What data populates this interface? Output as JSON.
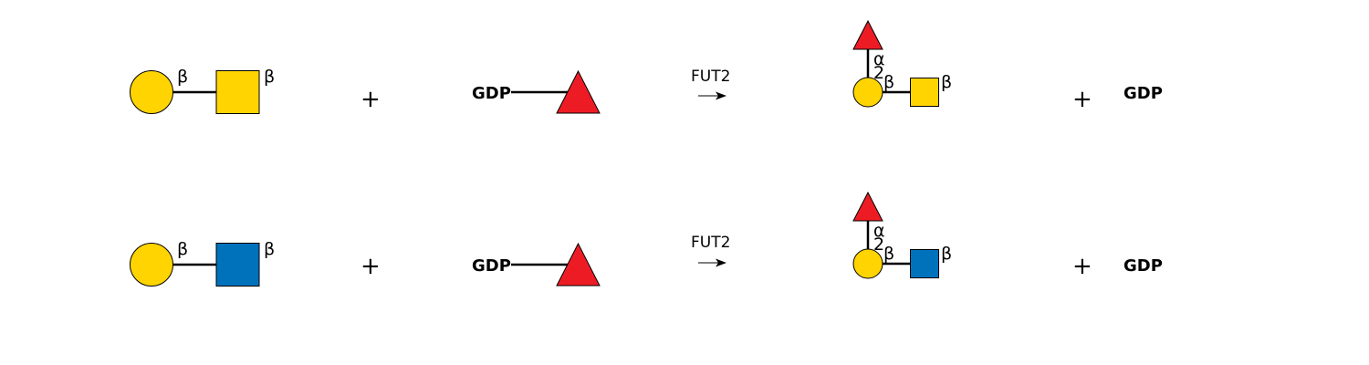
{
  "colors": {
    "galactose": "#FFD400",
    "n_acetylgalactosamine": "#FFD400",
    "n_acetylglucosamine": "#0072BC",
    "fucose": "#ED1C24",
    "link": "#000000",
    "background": "#FFFFFF"
  },
  "reactions": [
    {
      "substrate": {
        "residue_1": "circle",
        "residue_2": "square",
        "linkage_1": "β",
        "linkage_2": "β"
      },
      "plus_1": "+",
      "donor": {
        "label": "GDP",
        "residue": "triangle"
      },
      "enzyme": "FUT2",
      "arrow": "→",
      "product": {
        "fucose_anomer": "α",
        "fucose_position": "2",
        "linkage_1": "β",
        "linkage_2": "β"
      },
      "plus_2": "+",
      "byproduct": "GDP"
    },
    {
      "substrate": {
        "residue_1": "circle",
        "residue_2": "square",
        "linkage_1": "β",
        "linkage_2": "β"
      },
      "plus_1": "+",
      "donor": {
        "label": "GDP",
        "residue": "triangle"
      },
      "enzyme": "FUT2",
      "arrow": "→",
      "product": {
        "fucose_anomer": "α",
        "fucose_position": "2",
        "linkage_1": "β",
        "linkage_2": "β"
      },
      "plus_2": "+",
      "byproduct": "GDP"
    }
  ]
}
